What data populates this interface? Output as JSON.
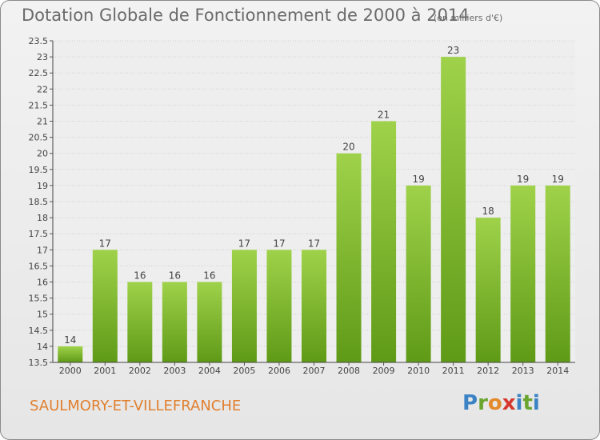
{
  "chart_data": {
    "type": "bar",
    "title": "Dotation Globale de Fonctionnement de 2000 à 2014",
    "subtitle": "(en milliers d'€)",
    "categories": [
      "2000",
      "2001",
      "2002",
      "2003",
      "2004",
      "2005",
      "2006",
      "2007",
      "2008",
      "2009",
      "2010",
      "2011",
      "2012",
      "2013",
      "2014"
    ],
    "values": [
      14,
      17,
      16,
      16,
      16,
      17,
      17,
      17,
      20,
      21,
      19,
      23,
      18,
      19,
      19
    ],
    "ylim": [
      13.5,
      23.5
    ],
    "yticks": [
      "13.5",
      "14",
      "14.5",
      "15",
      "15.5",
      "16",
      "16.5",
      "17",
      "17.5",
      "18",
      "18.5",
      "19",
      "19.5",
      "20",
      "20.5",
      "21",
      "21.5",
      "22",
      "22.5",
      "23",
      "23.5"
    ],
    "xlabel": "",
    "ylabel": "",
    "grid": true,
    "bar_color": "#7fbf2e"
  },
  "commune": "SAULMORY-ET-VILLEFRANCHE",
  "logo_text": "Proxiti"
}
